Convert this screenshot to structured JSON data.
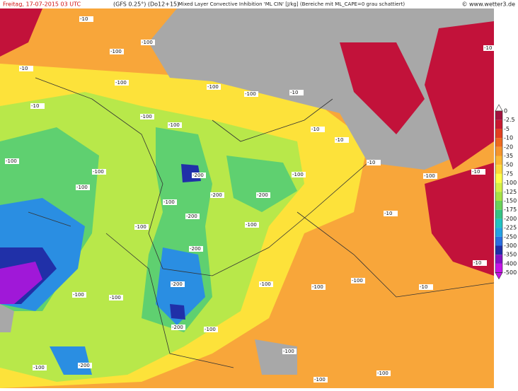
{
  "header": {
    "date": "Freitag, 17-07-2015  03 UTC",
    "model": "(GFS 0.25°) (Do12+15)",
    "title": "Mixed Layer Convective Inhibition 'ML CIN' [J/kg] (Bereiche mit ML_CAPE=0 grau schattiert)",
    "source": "© www.wetter3.de"
  },
  "colorbar": {
    "labels": [
      "0",
      "-2.5",
      "-5",
      "-10",
      "-20",
      "-35",
      "-50",
      "-75",
      "-100",
      "-125",
      "-150",
      "-175",
      "-200",
      "-225",
      "-250",
      "-300",
      "-350",
      "-400",
      "-500"
    ],
    "colors": [
      "#a3123f",
      "#c81830",
      "#e2401f",
      "#ee6a20",
      "#f5952c",
      "#fbb735",
      "#fdd83a",
      "#ffff4a",
      "#d4f048",
      "#a6e246",
      "#6ad25a",
      "#34c384",
      "#22c2c2",
      "#25a2e4",
      "#2a6ee0",
      "#1f2ea8",
      "#8412c4",
      "#c614e6"
    ]
  },
  "map": {
    "labels": [
      "-10",
      "-10",
      "-100",
      "-100",
      "-10",
      "-100",
      "-100",
      "-10",
      "-100",
      "-100",
      "-100",
      "-10",
      "-10",
      "-100",
      "-100",
      "-200",
      "-100",
      "-10",
      "-100",
      "-10",
      "-200",
      "-200",
      "-100",
      "-100",
      "-200",
      "-100",
      "-10",
      "-100",
      "-200",
      "-200",
      "-100",
      "-100",
      "-100",
      "-10",
      "-100",
      "-100",
      "-200",
      "-100",
      "-100",
      "-100",
      "-100",
      "-200",
      "-100",
      "-10",
      "-10"
    ]
  }
}
